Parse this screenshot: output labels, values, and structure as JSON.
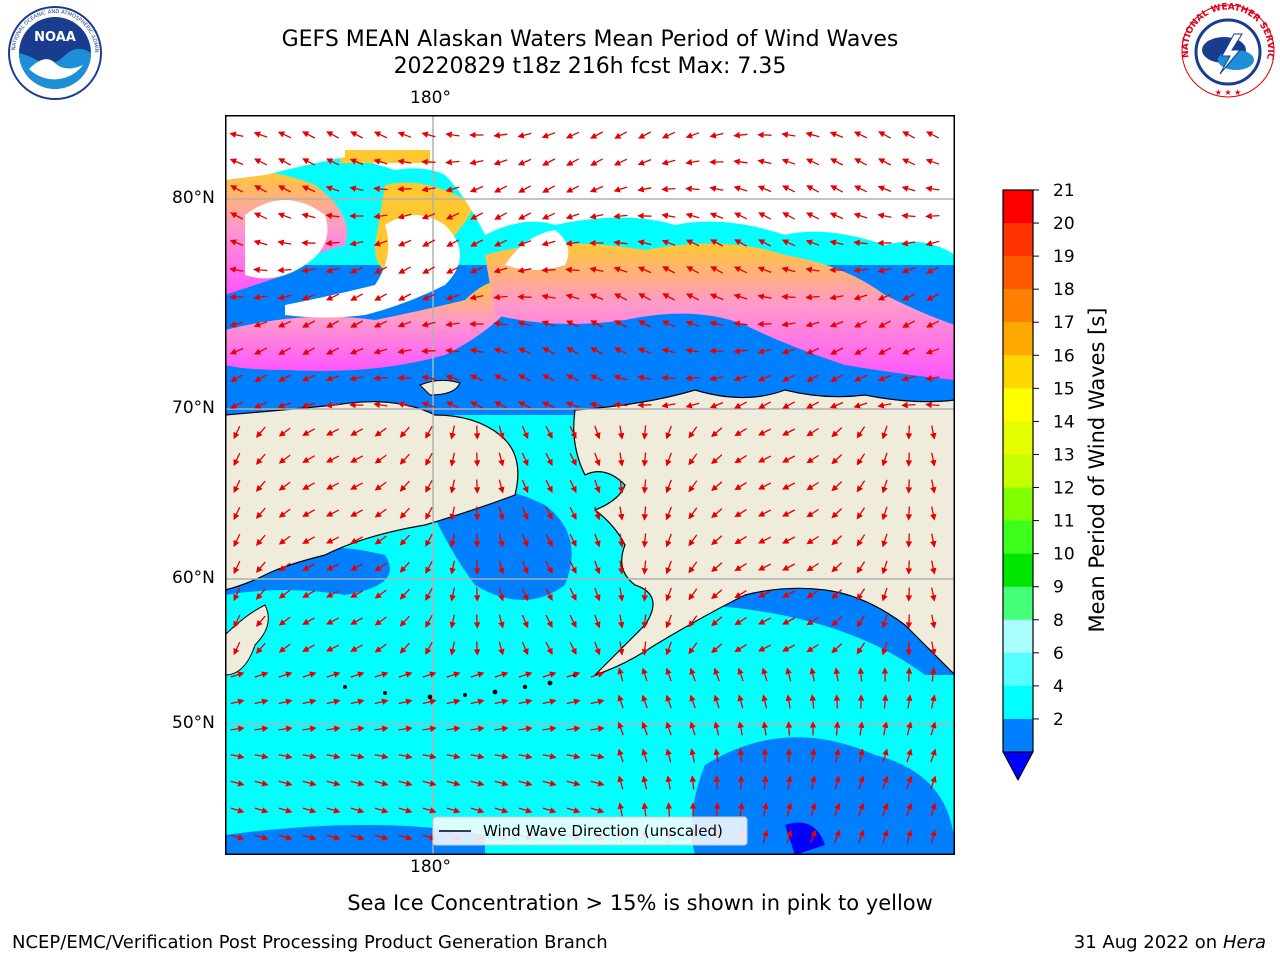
{
  "header": {
    "title_line1": "GEFS MEAN Alaskan Waters Mean Period of Wind Waves",
    "title_line2": "20220829 t18z 216h fcst   Max: 7.35"
  },
  "logos": {
    "left": "NOAA",
    "left_ring_text": "NATIONAL OCEANIC AND ATMOSPHERIC ADMINISTRATION · U.S. DEPARTMENT OF COMMERCE",
    "right_ring_text": "NATIONAL WEATHER SERVICE"
  },
  "map": {
    "lon_label_top": "180°",
    "lon_label_bottom": "180°",
    "lat_labels": [
      "80°N",
      "70°N",
      "60°N",
      "50°N"
    ],
    "legend_label": "Wind Wave Direction (unscaled)",
    "colors": {
      "land": "#efecdc",
      "ice_pink": "#ff66ff",
      "ice_yellow": "#ffc830",
      "arrow": "#e60000"
    }
  },
  "colorbar": {
    "title": "Mean Period of Wind Waves [s]",
    "ticks": [
      "21",
      "20",
      "19",
      "18",
      "17",
      "16",
      "15",
      "14",
      "13",
      "12",
      "11",
      "10",
      "9",
      "8",
      "6",
      "4",
      "2"
    ],
    "colors": [
      "#ff0000",
      "#ff3300",
      "#ff5a00",
      "#ff8000",
      "#ffaa00",
      "#ffd700",
      "#ffff00",
      "#e6ff00",
      "#c8ff00",
      "#80ff00",
      "#3cff1e",
      "#00e600",
      "#46ff78",
      "#aaffff",
      "#55ffff",
      "#00ffff",
      "#0080ff"
    ],
    "under_color": "#0000ff"
  },
  "footer": {
    "note": "Sea Ice Concentration > 15% is shown in pink to yellow",
    "credit": "NCEP/EMC/Verification Post Processing Product Generation Branch",
    "date": "31 Aug 2022 on",
    "host": "Hera"
  }
}
